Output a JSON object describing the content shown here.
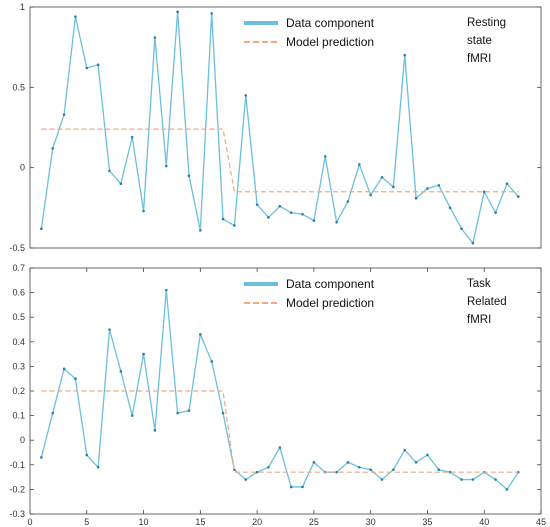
{
  "colors": {
    "data": "#6cc0dc",
    "model": "#f4a87c",
    "axis": "#444444",
    "background": "#ffffff"
  },
  "chart_data": [
    {
      "type": "line",
      "x": [
        1,
        2,
        3,
        4,
        5,
        6,
        7,
        8,
        9,
        10,
        11,
        12,
        13,
        14,
        15,
        16,
        17,
        18,
        19,
        20,
        21,
        22,
        23,
        24,
        25,
        26,
        27,
        28,
        29,
        30,
        31,
        32,
        33,
        34,
        35,
        36,
        37,
        38,
        39,
        40,
        41,
        42,
        43
      ],
      "series": [
        {
          "name": "Data component",
          "style": "solid",
          "values": [
            -0.38,
            0.12,
            0.33,
            0.94,
            0.62,
            0.64,
            -0.02,
            -0.1,
            0.19,
            -0.27,
            0.81,
            0.01,
            0.97,
            -0.05,
            -0.39,
            0.96,
            -0.32,
            -0.36,
            0.45,
            -0.23,
            -0.31,
            -0.24,
            -0.28,
            -0.29,
            -0.33,
            0.07,
            -0.34,
            -0.21,
            0.02,
            -0.17,
            -0.06,
            -0.12,
            0.7,
            -0.19,
            -0.13,
            -0.11,
            -0.25,
            -0.38,
            -0.47,
            -0.15,
            -0.28,
            -0.1,
            -0.18
          ]
        },
        {
          "name": "Model prediction",
          "style": "dashed",
          "values": [
            0.24,
            0.24,
            0.24,
            0.24,
            0.24,
            0.24,
            0.24,
            0.24,
            0.24,
            0.24,
            0.24,
            0.24,
            0.24,
            0.24,
            0.24,
            0.24,
            0.24,
            -0.15,
            -0.15,
            -0.15,
            -0.15,
            -0.15,
            -0.15,
            -0.15,
            -0.15,
            -0.15,
            -0.15,
            -0.15,
            -0.15,
            -0.15,
            -0.15,
            -0.15,
            -0.15,
            -0.15,
            -0.15,
            -0.15,
            -0.15,
            -0.15,
            -0.15,
            -0.15,
            -0.15,
            -0.15,
            -0.15
          ]
        }
      ],
      "xlim": [
        0,
        45
      ],
      "ylim": [
        -0.5,
        1.0
      ],
      "xticks": [],
      "yticks": [
        -0.5,
        0,
        0.5,
        1
      ],
      "ytick_labels": [
        "-0.5",
        "0",
        "0.5",
        "1"
      ],
      "annotation": [
        "Resting",
        "state",
        "fMRI"
      ],
      "legend_position": "top-right",
      "grid": false
    },
    {
      "type": "line",
      "x": [
        1,
        2,
        3,
        4,
        5,
        6,
        7,
        8,
        9,
        10,
        11,
        12,
        13,
        14,
        15,
        16,
        17,
        18,
        19,
        20,
        21,
        22,
        23,
        24,
        25,
        26,
        27,
        28,
        29,
        30,
        31,
        32,
        33,
        34,
        35,
        36,
        37,
        38,
        39,
        40,
        41,
        42,
        43
      ],
      "series": [
        {
          "name": "Data component",
          "style": "solid",
          "values": [
            -0.07,
            0.11,
            0.29,
            0.25,
            -0.06,
            -0.11,
            0.45,
            0.28,
            0.1,
            0.35,
            0.04,
            0.61,
            0.11,
            0.12,
            0.43,
            0.32,
            0.11,
            -0.12,
            -0.16,
            -0.13,
            -0.11,
            -0.03,
            -0.19,
            -0.19,
            -0.09,
            -0.13,
            -0.13,
            -0.09,
            -0.11,
            -0.12,
            -0.16,
            -0.12,
            -0.04,
            -0.09,
            -0.06,
            -0.12,
            -0.13,
            -0.16,
            -0.16,
            -0.13,
            -0.16,
            -0.2,
            -0.13
          ]
        },
        {
          "name": "Model prediction",
          "style": "dashed",
          "values": [
            0.2,
            0.2,
            0.2,
            0.2,
            0.2,
            0.2,
            0.2,
            0.2,
            0.2,
            0.2,
            0.2,
            0.2,
            0.2,
            0.2,
            0.2,
            0.2,
            0.2,
            -0.13,
            -0.13,
            -0.13,
            -0.13,
            -0.13,
            -0.13,
            -0.13,
            -0.13,
            -0.13,
            -0.13,
            -0.13,
            -0.13,
            -0.13,
            -0.13,
            -0.13,
            -0.13,
            -0.13,
            -0.13,
            -0.13,
            -0.13,
            -0.13,
            -0.13,
            -0.13,
            -0.13,
            -0.13,
            -0.13
          ]
        }
      ],
      "xlim": [
        0,
        45
      ],
      "ylim": [
        -0.3,
        0.7
      ],
      "xticks": [
        0,
        5,
        10,
        15,
        20,
        25,
        30,
        35,
        40,
        45
      ],
      "xtick_labels": [
        "0",
        "5",
        "10",
        "15",
        "20",
        "25",
        "30",
        "35",
        "40",
        "45"
      ],
      "yticks": [
        -0.3,
        -0.2,
        -0.1,
        0,
        0.1,
        0.2,
        0.3,
        0.4,
        0.5,
        0.6,
        0.7
      ],
      "ytick_labels": [
        "-0.3",
        "-0.2",
        "-0.1",
        "0",
        "0.1",
        "0.2",
        "0.3",
        "0.4",
        "0.5",
        "0.6",
        "0.7"
      ],
      "annotation": [
        "Task",
        "Related",
        "fMRI"
      ],
      "legend_position": "top-right",
      "grid": false
    }
  ]
}
